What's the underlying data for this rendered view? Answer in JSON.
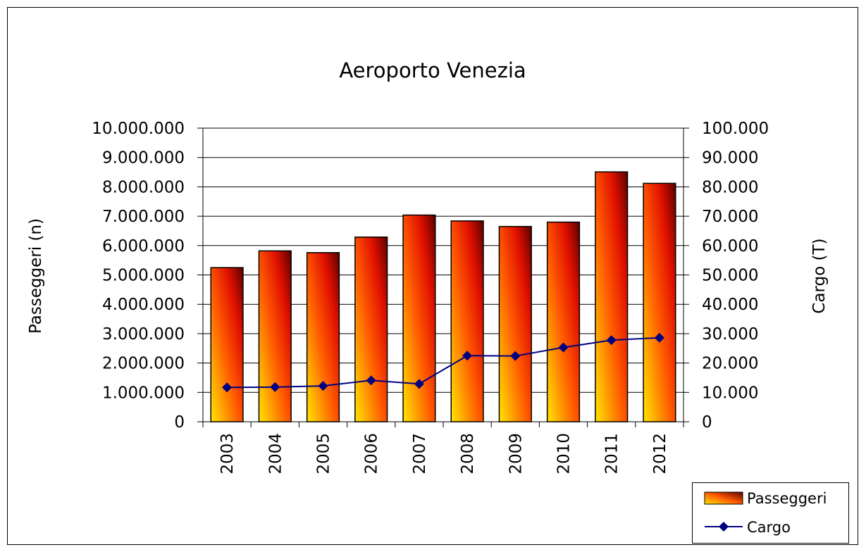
{
  "chart_data": {
    "type": "bar",
    "title": "Aeroporto Venezia",
    "categories": [
      "2003",
      "2004",
      "2005",
      "2006",
      "2007",
      "2008",
      "2009",
      "2010",
      "2011",
      "2012"
    ],
    "series": [
      {
        "name": "Passeggeri",
        "type": "bar",
        "axis": "left",
        "values": [
          5250000,
          5820000,
          5760000,
          6290000,
          7040000,
          6840000,
          6650000,
          6800000,
          8510000,
          8120000
        ]
      },
      {
        "name": "Cargo",
        "type": "line",
        "axis": "right",
        "marker": "diamond",
        "values": [
          11700,
          11800,
          12200,
          14100,
          12900,
          22500,
          22400,
          25300,
          27800,
          28600
        ]
      }
    ],
    "ylabel": "Passeggeri (n)",
    "y2label": "Cargo (T)",
    "ylim": [
      0,
      10000000
    ],
    "y2lim": [
      0,
      100000
    ],
    "yticks": [
      "0",
      "1.000.000",
      "2.000.000",
      "3.000.000",
      "4.000.000",
      "5.000.000",
      "6.000.000",
      "7.000.000",
      "8.000.000",
      "9.000.000",
      "10.000.000"
    ],
    "y2ticks": [
      "0",
      "10.000",
      "20.000",
      "30.000",
      "40.000",
      "50.000",
      "60.000",
      "70.000",
      "80.000",
      "90.000",
      "100.000"
    ],
    "grid": true,
    "legend_position": "bottom-right",
    "colors": {
      "bar_gradient_start": "#FFE600",
      "bar_gradient_mid": "#FF5A00",
      "bar_gradient_end": "#5A0000",
      "line": "#000080",
      "grid": "#000000",
      "border": "#000000"
    }
  }
}
